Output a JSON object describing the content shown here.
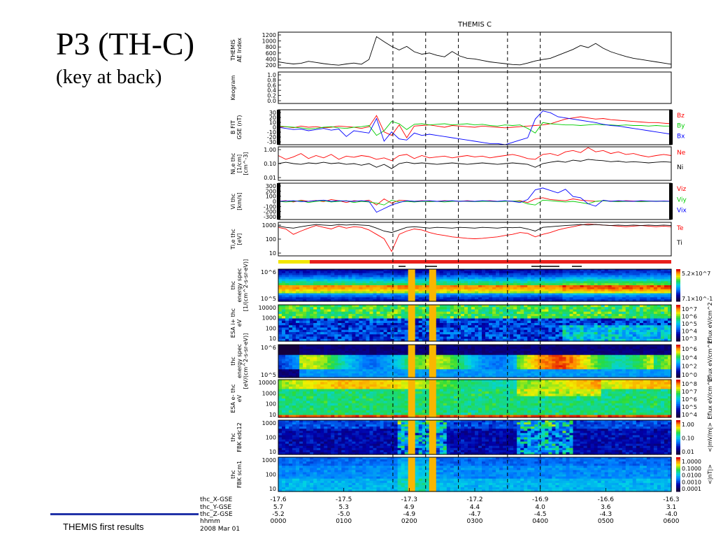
{
  "slide": {
    "title": "P3 (TH-C)",
    "subtitle": "(key at back)",
    "footer": "THEMIS first results"
  },
  "chart_data": {
    "type": "line",
    "title": "THEMIS C",
    "event_lines": [
      "0145",
      "0215",
      "0245",
      "0330",
      "0400"
    ],
    "panels": [
      {
        "id": "ae",
        "type": "line",
        "ylabel": [
          "THEMIS",
          "AE Index"
        ],
        "yticks": [
          "1200",
          "1000",
          "800",
          "600",
          "400",
          "200"
        ],
        "series": [
          {
            "name": "",
            "color": "#000000",
            "values": [
              300,
              260,
              230,
              250,
              320,
              280,
              240,
              210,
              190,
              230,
              260,
              220,
              380,
              1150,
              980,
              820,
              700,
              820,
              640,
              560,
              600,
              520,
              470,
              650,
              500,
              420,
              400,
              350,
              300,
              270,
              240,
              210,
              200,
              260,
              330,
              380,
              420,
              520,
              620,
              720,
              850,
              780,
              920,
              760,
              640,
              560,
              480,
              420,
              380,
              340,
              300,
              260,
              220
            ]
          }
        ]
      },
      {
        "id": "keogram",
        "type": "line",
        "ylabel": [
          "Keogram"
        ],
        "yticks": [
          "1.0",
          "0.8",
          "0.6",
          "0.4",
          "0.2",
          "0.0"
        ],
        "series": []
      },
      {
        "id": "bfit",
        "type": "line",
        "ylabel": [
          "B FIT",
          "GSE (nT)"
        ],
        "yticks": [
          "30",
          "20",
          "10",
          "0",
          "-10",
          "-20",
          "-30"
        ],
        "series": [
          {
            "name": "Bz",
            "color": "#ff0000",
            "values": [
              0,
              1,
              -1,
              2,
              0,
              1,
              -1,
              0,
              2,
              1,
              0,
              -2,
              1,
              20,
              -8,
              -14,
              4,
              -18,
              2,
              3,
              4,
              2,
              0,
              3,
              2,
              1,
              0,
              2,
              1,
              0,
              -1,
              0,
              1,
              2,
              3,
              4,
              6,
              10,
              14,
              16,
              18,
              16,
              14,
              15,
              13,
              12,
              11,
              10,
              9,
              8,
              8,
              7,
              6
            ]
          },
          {
            "name": "By",
            "color": "#00cc00",
            "values": [
              2,
              1,
              0,
              -1,
              -3,
              -2,
              0,
              1,
              -1,
              -2,
              0,
              1,
              3,
              -14,
              -6,
              10,
              6,
              -4,
              5,
              6,
              4,
              5,
              6,
              4,
              5,
              6,
              4,
              5,
              3,
              2,
              4,
              3,
              4,
              -2,
              -10,
              8,
              6,
              5,
              4,
              4,
              3,
              4,
              5,
              4,
              4,
              3,
              4,
              3,
              3,
              2,
              3,
              2,
              2
            ]
          },
          {
            "name": "Bx",
            "color": "#0000ff",
            "values": [
              0,
              -2,
              -4,
              -3,
              -6,
              -4,
              -2,
              -5,
              -3,
              -16,
              -6,
              -8,
              -10,
              15,
              -24,
              -8,
              -20,
              -22,
              -10,
              -14,
              -12,
              -14,
              -16,
              -18,
              -20,
              -22,
              -24,
              -26,
              -28,
              -28,
              -30,
              -26,
              -22,
              -18,
              14,
              28,
              25,
              18,
              16,
              14,
              12,
              10,
              8,
              5,
              3,
              2,
              0,
              -2,
              -4,
              -6,
              -8,
              -10,
              -12
            ]
          }
        ]
      },
      {
        "id": "density",
        "type": "line",
        "ylabel": [
          "Ni,e thc",
          "[1/cm]",
          "[cm^-3]"
        ],
        "yticks": [
          "1.00",
          "0.10",
          "0.01"
        ],
        "series": [
          {
            "name": "Ne",
            "color": "#ff0000",
            "values": [
              0.3,
              0.18,
              0.25,
              0.4,
              0.2,
              0.3,
              0.22,
              0.35,
              0.18,
              0.28,
              0.24,
              0.3,
              0.26,
              0.18,
              0.22,
              0.15,
              0.3,
              0.35,
              0.2,
              0.3,
              0.22,
              0.25,
              0.28,
              0.22,
              0.26,
              0.3,
              0.25,
              0.28,
              0.22,
              0.26,
              0.3,
              0.35,
              0.28,
              0.2,
              0.18,
              0.35,
              0.4,
              0.3,
              0.5,
              0.6,
              0.45,
              0.9,
              0.5,
              0.6,
              0.4,
              0.5,
              0.35,
              0.4,
              0.3,
              0.25,
              0.3,
              0.35,
              0.3
            ]
          },
          {
            "name": "Ni",
            "color": "#000000",
            "values": [
              0.1,
              0.12,
              0.1,
              0.09,
              0.11,
              0.1,
              0.12,
              0.1,
              0.11,
              0.09,
              0.1,
              0.08,
              0.1,
              0.06,
              0.09,
              0.05,
              0.1,
              0.12,
              0.1,
              0.11,
              0.1,
              0.09,
              0.1,
              0.11,
              0.1,
              0.09,
              0.1,
              0.11,
              0.1,
              0.09,
              0.1,
              0.11,
              0.1,
              0.09,
              0.06,
              0.1,
              0.12,
              0.14,
              0.12,
              0.16,
              0.14,
              0.18,
              0.16,
              0.15,
              0.13,
              0.14,
              0.12,
              0.13,
              0.12,
              0.11,
              0.12,
              0.13,
              0.12
            ]
          }
        ]
      },
      {
        "id": "vi",
        "type": "line",
        "ylabel": [
          "Vi thc",
          "[km/s]"
        ],
        "yticks": [
          "300",
          "200",
          "100",
          "0",
          "-100",
          "-200",
          "-300"
        ],
        "series": [
          {
            "name": "Viz",
            "color": "#ff0000",
            "values": [
              0,
              10,
              -10,
              20,
              0,
              15,
              -5,
              30,
              10,
              -20,
              10,
              0,
              20,
              -60,
              40,
              -30,
              20,
              10,
              0,
              10,
              5,
              0,
              10,
              5,
              0,
              10,
              0,
              5,
              10,
              0,
              5,
              0,
              10,
              -20,
              40,
              60,
              30,
              20,
              10,
              40,
              20,
              10,
              0,
              10,
              5,
              0,
              10,
              5,
              0,
              5,
              0,
              5,
              0
            ]
          },
          {
            "name": "Viy",
            "color": "#00cc00",
            "values": [
              0,
              -10,
              0,
              10,
              -20,
              0,
              10,
              -10,
              0,
              10,
              -20,
              0,
              -10,
              -30,
              -60,
              20,
              -10,
              0,
              -10,
              0,
              -5,
              0,
              -10,
              0,
              5,
              0,
              -5,
              0,
              0,
              -5,
              0,
              5,
              0,
              -40,
              -60,
              20,
              10,
              0,
              -10,
              0,
              -20,
              -40,
              0,
              10,
              0,
              -5,
              0,
              0,
              -5,
              0,
              5,
              0,
              0
            ]
          },
          {
            "name": "Vix",
            "color": "#0000ff",
            "values": [
              0,
              5,
              10,
              -5,
              0,
              10,
              20,
              0,
              10,
              5,
              0,
              10,
              0,
              -180,
              -120,
              -60,
              -20,
              10,
              0,
              5,
              10,
              0,
              5,
              10,
              0,
              5,
              0,
              10,
              5,
              0,
              10,
              0,
              -20,
              30,
              190,
              220,
              180,
              140,
              200,
              80,
              60,
              -40,
              -80,
              20,
              0,
              10,
              5,
              0,
              10,
              5,
              0,
              5,
              0
            ]
          }
        ]
      },
      {
        "id": "temp",
        "type": "line",
        "ylabel": [
          "Ti,e thc",
          "[eV]"
        ],
        "yticks": [
          "1000",
          "100",
          "10"
        ],
        "series": [
          {
            "name": "Te",
            "color": "#ff0000",
            "values": [
              900,
              700,
              300,
              500,
              800,
              1200,
              900,
              700,
              1100,
              800,
              1000,
              900,
              600,
              300,
              150,
              20,
              300,
              500,
              700,
              600,
              400,
              300,
              250,
              200,
              180,
              160,
              150,
              160,
              180,
              200,
              250,
              300,
              400,
              350,
              200,
              300,
              400,
              600,
              800,
              1000,
              1300,
              1500,
              1400,
              1300,
              1200,
              1100,
              1000,
              1100,
              1200,
              1100,
              1000,
              1100,
              1000
            ]
          },
          {
            "name": "Ti",
            "color": "#000000",
            "values": [
              1100,
              900,
              800,
              1000,
              1200,
              1400,
              1300,
              1200,
              1400,
              1300,
              1400,
              1300,
              1200,
              800,
              500,
              400,
              600,
              900,
              1000,
              900,
              800,
              900,
              850,
              800,
              900,
              850,
              800,
              900,
              850,
              800,
              900,
              850,
              900,
              700,
              500,
              900,
              1000,
              1100,
              1200,
              1300,
              1400,
              1300,
              1400,
              1300,
              1200,
              1300,
              1200,
              1300,
              1200,
              1300,
              1200,
              1300,
              1200
            ]
          }
        ]
      },
      {
        "id": "esa_i_energy",
        "type": "heatmap",
        "ylabel": [
          "thc",
          "energy spec",
          "[1/(cm^2-s-sr-eV)]"
        ],
        "yticks": [
          "10^6",
          "10^5"
        ],
        "colorbar": [
          "5.2×10^7",
          "7.1×10^-1"
        ]
      },
      {
        "id": "esa_i_flux",
        "type": "heatmap",
        "ylabel": [
          "ESA i+ thc",
          "eV"
        ],
        "yticks": [
          "10000",
          "1000",
          "100",
          "10"
        ],
        "colorbar": [
          "10^7",
          "10^6",
          "10^5",
          "10^4",
          "10^3"
        ],
        "colorbar_label": "Eflux eV/cm^2"
      },
      {
        "id": "esa_e_energy",
        "type": "heatmap",
        "ylabel": [
          "thc",
          "energy spec",
          "[eV/(cm^2-s-sr-eV)]"
        ],
        "yticks": [
          "10^6",
          "10^5"
        ],
        "colorbar": [
          "10^6",
          "10^4",
          "10^2",
          "10^0"
        ],
        "colorbar_label": "Eflux eV/cm^2"
      },
      {
        "id": "esa_e_flux",
        "type": "heatmap",
        "ylabel": [
          "ESA e- thc",
          "eV"
        ],
        "yticks": [
          "10000",
          "1000",
          "100",
          "10"
        ],
        "colorbar": [
          "10^8",
          "10^7",
          "10^6",
          "10^5",
          "10^4"
        ],
        "colorbar_label": "Eflux eV/cm^2"
      },
      {
        "id": "fbk_edc",
        "type": "heatmap",
        "ylabel": [
          "thc",
          "FBK edc12"
        ],
        "yticks": [
          "1000",
          "100",
          "10"
        ],
        "colorbar": [
          "1.00",
          "0.10",
          "0.01"
        ],
        "colorbar_label": "<|mV/m|>"
      },
      {
        "id": "fbk_scm",
        "type": "heatmap",
        "ylabel": [
          "thc",
          "FBK scm1"
        ],
        "yticks": [
          "1000",
          "100",
          "10"
        ],
        "colorbar": [
          "1.0000",
          "0.1000",
          "0.0100",
          "0.0010",
          "0.0001"
        ],
        "colorbar_label": "<|nT|>"
      }
    ],
    "x_axis": {
      "row_labels": [
        "thc_X-GSE",
        "thc_Y-GSE",
        "thc_Z-GSE",
        "hhmm",
        "2008 Mar 01"
      ],
      "ticks": [
        [
          "-17.6",
          "5.7",
          "-5.2",
          "0000"
        ],
        [
          "-17.5",
          "5.3",
          "-5.0",
          "0100"
        ],
        [
          "-17.3",
          "4.9",
          "-4.9",
          "0200"
        ],
        [
          "-17.2",
          "4.4",
          "-4.7",
          "0300"
        ],
        [
          "-16.9",
          "4.0",
          "-4.5",
          "0400"
        ],
        [
          "-16.6",
          "3.6",
          "-4.3",
          "0500"
        ],
        [
          "-16.3",
          "3.1",
          "-4.0",
          "0600"
        ]
      ]
    }
  }
}
